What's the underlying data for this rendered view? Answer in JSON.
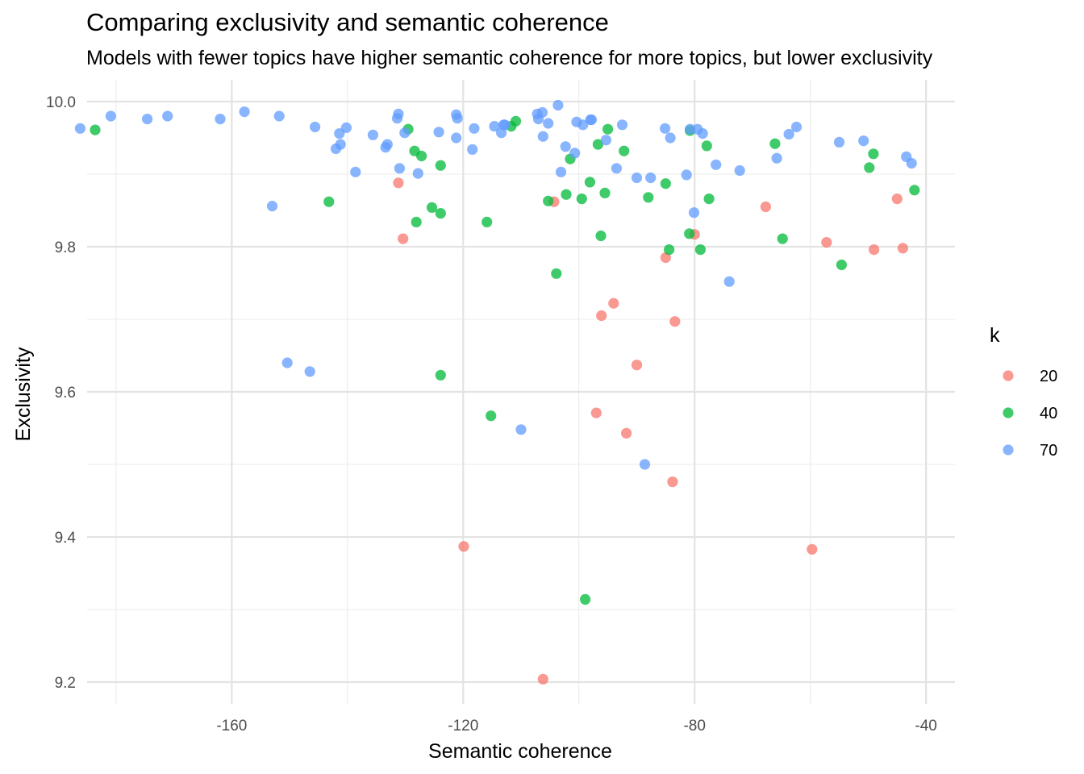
{
  "chart_data": {
    "type": "scatter",
    "title": "Comparing exclusivity and semantic coherence",
    "subtitle": "Models with fewer topics have higher semantic coherence for more topics, but lower exclusivity",
    "xlabel": "Semantic coherence",
    "ylabel": "Exclusivity",
    "xlim": [
      -185,
      -35
    ],
    "ylim": [
      9.17,
      10.03
    ],
    "x_ticks": [
      -160,
      -120,
      -80,
      -40
    ],
    "x_tick_labels": [
      "-160",
      "-120",
      "-80",
      "-40"
    ],
    "y_ticks": [
      9.2,
      9.4,
      9.6,
      9.8,
      10.0
    ],
    "y_tick_labels": [
      "9.2",
      "9.4",
      "9.6",
      "9.8",
      "10.0"
    ],
    "grid": true,
    "legend": {
      "title": "k",
      "placement": "right"
    },
    "series": [
      {
        "name": "20",
        "color": "#F8766D",
        "points": [
          [
            -131.2,
            9.888
          ],
          [
            -130.4,
            9.811
          ],
          [
            -104.3,
            9.862
          ],
          [
            -67.7,
            9.855
          ],
          [
            -80.0,
            9.817
          ],
          [
            -85.0,
            9.785
          ],
          [
            -94.0,
            9.722
          ],
          [
            -96.1,
            9.705
          ],
          [
            -83.4,
            9.697
          ],
          [
            -90.0,
            9.637
          ],
          [
            -97.0,
            9.571
          ],
          [
            -91.8,
            9.543
          ],
          [
            -83.8,
            9.476
          ],
          [
            -119.9,
            9.387
          ],
          [
            -59.7,
            9.383
          ],
          [
            -106.2,
            9.204
          ],
          [
            -57.2,
            9.806
          ],
          [
            -49.0,
            9.796
          ],
          [
            -44.0,
            9.798
          ],
          [
            -45.0,
            9.866
          ]
        ]
      },
      {
        "name": "40",
        "color": "#00BA38",
        "points": [
          [
            -183.6,
            9.961
          ],
          [
            -129.5,
            9.962
          ],
          [
            -110.9,
            9.973
          ],
          [
            -111.7,
            9.966
          ],
          [
            -95.0,
            9.962
          ],
          [
            -80.8,
            9.96
          ],
          [
            -128.4,
            9.932
          ],
          [
            -127.2,
            9.925
          ],
          [
            -96.7,
            9.941
          ],
          [
            -92.2,
            9.932
          ],
          [
            -77.9,
            9.939
          ],
          [
            -66.1,
            9.942
          ],
          [
            -49.1,
            9.928
          ],
          [
            -123.9,
            9.912
          ],
          [
            -49.8,
            9.909
          ],
          [
            -98.1,
            9.889
          ],
          [
            -85.0,
            9.887
          ],
          [
            -143.2,
            9.862
          ],
          [
            -125.4,
            9.854
          ],
          [
            -123.9,
            9.846
          ],
          [
            -102.2,
            9.872
          ],
          [
            -95.5,
            9.874
          ],
          [
            -105.3,
            9.863
          ],
          [
            -99.5,
            9.866
          ],
          [
            -88.0,
            9.868
          ],
          [
            -77.5,
            9.866
          ],
          [
            -42.0,
            9.878
          ],
          [
            -128.1,
            9.834
          ],
          [
            -115.9,
            9.834
          ],
          [
            -96.2,
            9.815
          ],
          [
            -80.9,
            9.818
          ],
          [
            -64.8,
            9.811
          ],
          [
            -84.4,
            9.796
          ],
          [
            -79.0,
            9.796
          ],
          [
            -54.6,
            9.775
          ],
          [
            -103.9,
            9.763
          ],
          [
            -123.9,
            9.623
          ],
          [
            -115.2,
            9.567
          ],
          [
            -98.9,
            9.314
          ],
          [
            -101.5,
            9.921
          ]
        ]
      },
      {
        "name": "70",
        "color": "#619CFF",
        "points": [
          [
            -186.2,
            9.963
          ],
          [
            -180.9,
            9.98
          ],
          [
            -174.6,
            9.976
          ],
          [
            -171.1,
            9.98
          ],
          [
            -162.0,
            9.976
          ],
          [
            -157.8,
            9.986
          ],
          [
            -151.8,
            9.98
          ],
          [
            -145.6,
            9.965
          ],
          [
            -140.2,
            9.964
          ],
          [
            -141.4,
            9.956
          ],
          [
            -141.2,
            9.941
          ],
          [
            -142.0,
            9.935
          ],
          [
            -135.6,
            9.954
          ],
          [
            -133.1,
            9.941
          ],
          [
            -133.4,
            9.937
          ],
          [
            -131.2,
            9.983
          ],
          [
            -131.4,
            9.977
          ],
          [
            -130.1,
            9.957
          ],
          [
            -131.0,
            9.908
          ],
          [
            -127.8,
            9.901
          ],
          [
            -138.6,
            9.903
          ],
          [
            -124.2,
            9.958
          ],
          [
            -121.2,
            9.982
          ],
          [
            -121.0,
            9.977
          ],
          [
            -121.2,
            9.95
          ],
          [
            -118.1,
            9.963
          ],
          [
            -118.4,
            9.934
          ],
          [
            -114.6,
            9.966
          ],
          [
            -113.0,
            9.968
          ],
          [
            -112.8,
            9.968
          ],
          [
            -113.4,
            9.957
          ],
          [
            -107.2,
            9.983
          ],
          [
            -106.3,
            9.985
          ],
          [
            -107.0,
            9.976
          ],
          [
            -105.3,
            9.97
          ],
          [
            -103.6,
            9.995
          ],
          [
            -106.2,
            9.952
          ],
          [
            -102.3,
            9.938
          ],
          [
            -103.1,
            9.903
          ],
          [
            -100.7,
            9.929
          ],
          [
            -100.4,
            9.972
          ],
          [
            -99.3,
            9.968
          ],
          [
            -98.0,
            9.975
          ],
          [
            -97.8,
            9.975
          ],
          [
            -95.3,
            9.947
          ],
          [
            -92.5,
            9.968
          ],
          [
            -93.5,
            9.908
          ],
          [
            -90.0,
            9.895
          ],
          [
            -87.6,
            9.895
          ],
          [
            -85.1,
            9.963
          ],
          [
            -84.2,
            9.95
          ],
          [
            -80.8,
            9.962
          ],
          [
            -79.5,
            9.962
          ],
          [
            -78.6,
            9.956
          ],
          [
            -81.4,
            9.899
          ],
          [
            -76.3,
            9.913
          ],
          [
            -72.2,
            9.905
          ],
          [
            -62.4,
            9.965
          ],
          [
            -63.7,
            9.955
          ],
          [
            -65.8,
            9.922
          ],
          [
            -55.0,
            9.944
          ],
          [
            -50.8,
            9.946
          ],
          [
            -43.4,
            9.924
          ],
          [
            -42.5,
            9.915
          ],
          [
            -80.1,
            9.847
          ],
          [
            -153.0,
            9.856
          ],
          [
            -74.0,
            9.752
          ],
          [
            -150.4,
            9.64
          ],
          [
            -146.5,
            9.628
          ],
          [
            -110.0,
            9.548
          ],
          [
            -88.6,
            9.5
          ]
        ]
      }
    ]
  }
}
